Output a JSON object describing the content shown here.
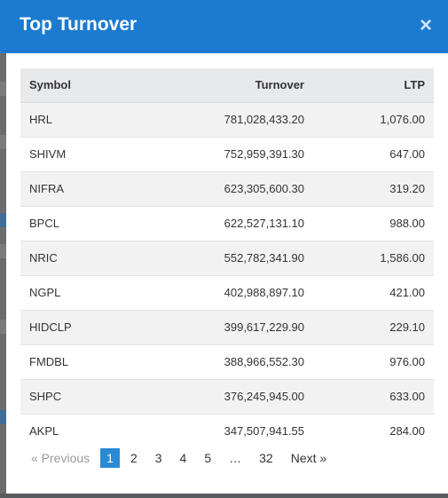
{
  "modal": {
    "title": "Top Turnover",
    "close_label": "×"
  },
  "table": {
    "columns": [
      "Symbol",
      "Turnover",
      "LTP"
    ],
    "rows": [
      {
        "symbol": "HRL",
        "turnover": "781,028,433.20",
        "ltp": "1,076.00"
      },
      {
        "symbol": "SHIVM",
        "turnover": "752,959,391.30",
        "ltp": "647.00"
      },
      {
        "symbol": "NIFRA",
        "turnover": "623,305,600.30",
        "ltp": "319.20"
      },
      {
        "symbol": "BPCL",
        "turnover": "622,527,131.10",
        "ltp": "988.00"
      },
      {
        "symbol": "NRIC",
        "turnover": "552,782,341.90",
        "ltp": "1,586.00"
      },
      {
        "symbol": "NGPL",
        "turnover": "402,988,897.10",
        "ltp": "421.00"
      },
      {
        "symbol": "HIDCLP",
        "turnover": "399,617,229.90",
        "ltp": "229.10"
      },
      {
        "symbol": "FMDBL",
        "turnover": "388,966,552.30",
        "ltp": "976.00"
      },
      {
        "symbol": "SHPC",
        "turnover": "376,245,945.00",
        "ltp": "633.00"
      },
      {
        "symbol": "AKPL",
        "turnover": "347,507,941.55",
        "ltp": "284.00"
      }
    ]
  },
  "pagination": {
    "previous_label": "« Previous",
    "pages": [
      "1",
      "2",
      "3",
      "4",
      "5",
      "…",
      "32"
    ],
    "active_page": "1",
    "next_label": "Next »"
  },
  "colors": {
    "header_bg": "#1a7bd0",
    "active_page_bg": "#2a8ad4",
    "table_header_bg": "#e8e9eb",
    "stripe_bg": "#f2f2f2"
  }
}
